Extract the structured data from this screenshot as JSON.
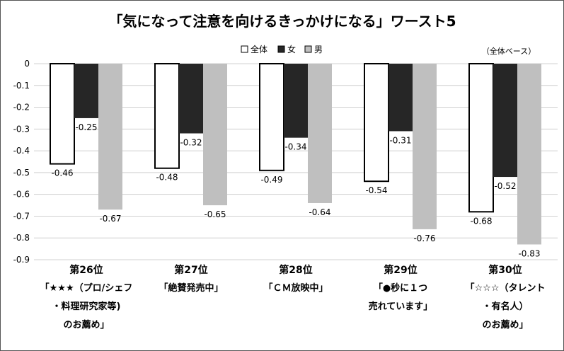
{
  "chart_data": {
    "type": "bar",
    "title": "「気になって注意を向けるきっかけになる」ワースト5",
    "note": "（全体ベース）",
    "ylim": [
      -0.9,
      0
    ],
    "yticks": [
      "0",
      "-0.1",
      "-0.2",
      "-0.3",
      "-0.4",
      "-0.5",
      "-0.6",
      "-0.7",
      "-0.8",
      "-0.9"
    ],
    "grid": true,
    "legend_position": "top-center",
    "categories": [
      {
        "rank": "第26位",
        "lines": [
          "「★★★（プロ/シェフ",
          "・料理研究家等)",
          "のお薦め」"
        ]
      },
      {
        "rank": "第27位",
        "lines": [
          "「絶賛発売中」"
        ]
      },
      {
        "rank": "第28位",
        "lines": [
          "「ＣＭ放映中」"
        ]
      },
      {
        "rank": "第29位",
        "lines": [
          "「●秒に１つ",
          "売れています」"
        ]
      },
      {
        "rank": "第30位",
        "lines": [
          "「☆☆☆（タレント",
          "・有名人）",
          "のお薦め」"
        ]
      }
    ],
    "series": [
      {
        "name": "全体",
        "values": [
          -0.46,
          -0.48,
          -0.49,
          -0.54,
          -0.68
        ],
        "labels": [
          "-0.46",
          "-0.48",
          "-0.49",
          "-0.54",
          "-0.68"
        ],
        "color": "#ffffff",
        "stroke": "#000000"
      },
      {
        "name": "女",
        "values": [
          -0.25,
          -0.32,
          -0.34,
          -0.31,
          -0.52
        ],
        "labels": [
          "-0.25",
          "-0.32",
          "-0.34",
          "-0.31",
          "-0.52"
        ],
        "color": "#262626",
        "stroke": "none"
      },
      {
        "name": "男",
        "values": [
          -0.67,
          -0.65,
          -0.64,
          -0.76,
          -0.83
        ],
        "labels": [
          "-0.67",
          "-0.65",
          "-0.64",
          "-0.76",
          "-0.83"
        ],
        "color": "#bfbfbf",
        "stroke": "none"
      }
    ]
  }
}
